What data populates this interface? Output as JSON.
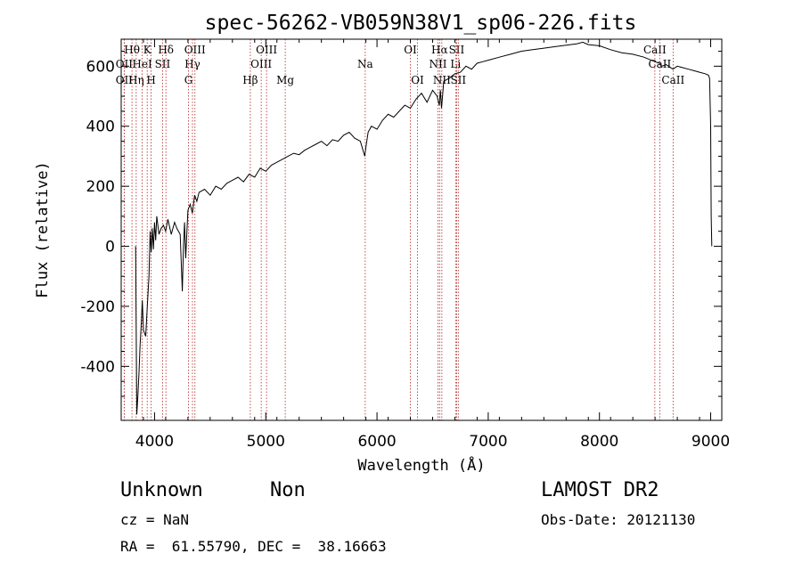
{
  "chart_data": {
    "type": "line",
    "title": "spec-56262-VB059N38V1_sp06-226.fits",
    "xlabel": "Wavelength (Å)",
    "ylabel": "Flux (relative)",
    "xlim": [
      3700,
      9100
    ],
    "ylim": [
      -580,
      690
    ],
    "xticks": [
      4000,
      5000,
      6000,
      7000,
      8000,
      9000
    ],
    "yticks": [
      -400,
      -200,
      0,
      200,
      400,
      600
    ],
    "grid": false,
    "legend": "none",
    "series": [
      {
        "color": "#000000",
        "x": [
          3830,
          3840,
          3850,
          3860,
          3870,
          3880,
          3890,
          3900,
          3920,
          3935,
          3950,
          3960,
          3970,
          3980,
          3990,
          4000,
          4010,
          4020,
          4040,
          4060,
          4080,
          4100,
          4120,
          4150,
          4180,
          4200,
          4230,
          4250,
          4260,
          4270,
          4280,
          4290,
          4300,
          4320,
          4340,
          4360,
          4380,
          4400,
          4450,
          4500,
          4550,
          4600,
          4650,
          4700,
          4750,
          4800,
          4850,
          4900,
          4950,
          5000,
          5050,
          5100,
          5150,
          5200,
          5250,
          5300,
          5350,
          5400,
          5450,
          5500,
          5550,
          5600,
          5650,
          5700,
          5750,
          5800,
          5850,
          5890,
          5900,
          5920,
          5950,
          6000,
          6050,
          6100,
          6150,
          6200,
          6250,
          6300,
          6350,
          6400,
          6450,
          6500,
          6540,
          6560,
          6570,
          6580,
          6600,
          6650,
          6700,
          6750,
          6800,
          6850,
          6900,
          6950,
          7000,
          7100,
          7200,
          7300,
          7400,
          7500,
          7600,
          7700,
          7800,
          7850,
          7900,
          8000,
          8100,
          8200,
          8300,
          8400,
          8500,
          8540,
          8560,
          8600,
          8660,
          8700,
          8750,
          8800,
          8850,
          8900,
          8950,
          8980,
          8990,
          9000,
          9005,
          9010
        ],
        "y": [
          0,
          -560,
          -500,
          -420,
          -330,
          -260,
          -180,
          -280,
          -300,
          -200,
          -100,
          50,
          -20,
          60,
          -10,
          80,
          20,
          100,
          40,
          60,
          70,
          50,
          90,
          40,
          80,
          60,
          40,
          -150,
          0,
          80,
          -40,
          40,
          120,
          140,
          110,
          170,
          150,
          180,
          190,
          170,
          200,
          190,
          210,
          220,
          230,
          215,
          240,
          230,
          260,
          250,
          270,
          280,
          290,
          300,
          310,
          305,
          320,
          330,
          340,
          350,
          335,
          355,
          350,
          370,
          380,
          360,
          350,
          300,
          330,
          380,
          400,
          390,
          420,
          440,
          430,
          450,
          470,
          460,
          490,
          510,
          480,
          520,
          500,
          470,
          520,
          460,
          550,
          560,
          575,
          580,
          600,
          590,
          610,
          615,
          620,
          630,
          640,
          650,
          655,
          660,
          665,
          670,
          675,
          680,
          672,
          668,
          655,
          645,
          640,
          630,
          615,
          610,
          600,
          605,
          590,
          600,
          595,
          590,
          585,
          580,
          575,
          570,
          560,
          400,
          100,
          0
        ]
      }
    ],
    "line_markers": [
      {
        "label": "Hθ",
        "x": 3797,
        "row": 1
      },
      {
        "label": "OII",
        "x": 3727,
        "row": 3
      },
      {
        "label": "Hη",
        "x": 3835,
        "row": 3
      },
      {
        "label": "OII",
        "x": 3727,
        "row": 2
      },
      {
        "label": "HeI",
        "x": 3889,
        "row": 2
      },
      {
        "label": "K",
        "x": 3934,
        "row": 1
      },
      {
        "label": "H",
        "x": 3969,
        "row": 3
      },
      {
        "label": "SII",
        "x": 4072,
        "row": 2
      },
      {
        "label": "Hδ",
        "x": 4102,
        "row": 1
      },
      {
        "label": "G",
        "x": 4305,
        "row": 3
      },
      {
        "label": "Hγ",
        "x": 4341,
        "row": 2
      },
      {
        "label": "OIII",
        "x": 4363,
        "row": 1
      },
      {
        "label": "Hβ",
        "x": 4861,
        "row": 3
      },
      {
        "label": "OIII",
        "x": 4959,
        "row": 2
      },
      {
        "label": "OIII",
        "x": 5007,
        "row": 1
      },
      {
        "label": "Mg",
        "x": 5175,
        "row": 3
      },
      {
        "label": "Na",
        "x": 5894,
        "row": 2
      },
      {
        "label": "OI",
        "x": 6300,
        "row": 1
      },
      {
        "label": "OI",
        "x": 6364,
        "row": 3
      },
      {
        "label": "NII",
        "x": 6548,
        "row": 2
      },
      {
        "label": "Hα",
        "x": 6563,
        "row": 1
      },
      {
        "label": "NII",
        "x": 6583,
        "row": 3
      },
      {
        "label": "Li",
        "x": 6707,
        "row": 2
      },
      {
        "label": "SII",
        "x": 6716,
        "row": 1
      },
      {
        "label": "SII",
        "x": 6731,
        "row": 3
      },
      {
        "label": "CaII",
        "x": 8498,
        "row": 1
      },
      {
        "label": "CaII",
        "x": 8542,
        "row": 2
      },
      {
        "label": "CaII",
        "x": 8662,
        "row": 3
      }
    ]
  },
  "info": {
    "class_name": "Unknown",
    "subclass": "Non",
    "survey": "LAMOST DR2",
    "cz": "cz = NaN",
    "obs_date": "Obs-Date: 20121130",
    "coords": "RA =  61.55790, DEC =  38.16663"
  }
}
